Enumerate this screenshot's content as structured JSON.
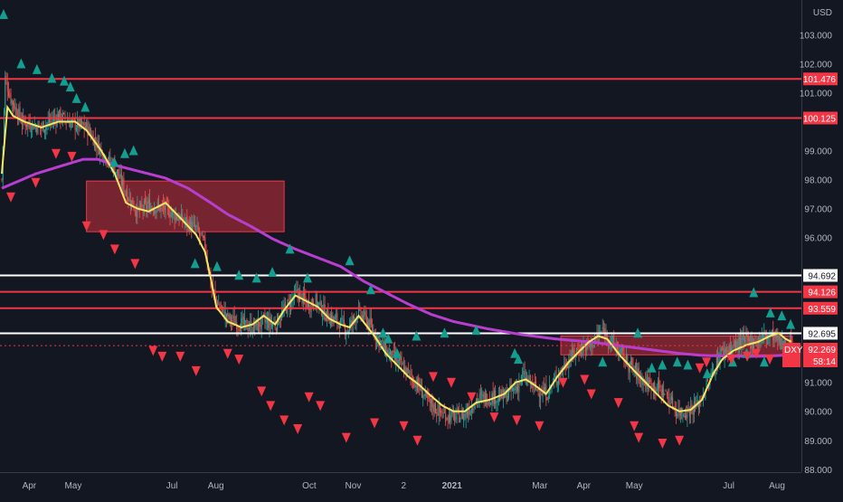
{
  "chart_data": {
    "type": "candlestick",
    "symbol": "DXY",
    "currency_label": "USD",
    "countdown": "58:14",
    "last_price": 92.269,
    "ylim": [
      87.9,
      104.2
    ],
    "x_tick_labels": [
      {
        "label": "Apr",
        "bar": 25
      },
      {
        "label": "May",
        "bar": 65
      },
      {
        "label": "Jul",
        "bar": 155
      },
      {
        "label": "Aug",
        "bar": 195
      },
      {
        "label": "Oct",
        "bar": 280
      },
      {
        "label": "Nov",
        "bar": 320
      },
      {
        "label": "2",
        "bar": 366
      },
      {
        "label": "2021",
        "bar": 410
      },
      {
        "label": "Mar",
        "bar": 490
      },
      {
        "label": "Apr",
        "bar": 530
      },
      {
        "label": "May",
        "bar": 576
      },
      {
        "label": "Jul",
        "bar": 662
      },
      {
        "label": "Aug",
        "bar": 706
      }
    ],
    "y_tick_labels": [
      "103.000",
      "102.000",
      "101.000",
      "99.000",
      "98.000",
      "97.000",
      "96.000",
      "91.000",
      "90.000",
      "89.000",
      "88.000"
    ],
    "y_tick_values": [
      103,
      102,
      101,
      99,
      98,
      97,
      96,
      91,
      90,
      89,
      88
    ],
    "horizontal_lines": [
      {
        "price": 101.476,
        "label": "101.476",
        "color": "#f23645"
      },
      {
        "price": 100.125,
        "label": "100.125",
        "color": "#f23645"
      },
      {
        "price": 94.692,
        "label": "94.692",
        "color": "#ffffff"
      },
      {
        "price": 94.126,
        "label": "94.126",
        "color": "#f23645"
      },
      {
        "price": 93.559,
        "label": "93.559",
        "color": "#f23645"
      },
      {
        "price": 92.695,
        "label": "92.695",
        "color": "#ffffff"
      }
    ],
    "zones": [
      {
        "bar_start": 75,
        "bar_end": 250,
        "price_top": 97.95,
        "price_bottom": 96.2
      },
      {
        "bar_start": 495,
        "bar_end": 700,
        "price_top": 92.6,
        "price_bottom": 91.95
      }
    ],
    "price_anchors": [
      [
        0,
        98.0
      ],
      [
        3,
        101.5
      ],
      [
        8,
        100.8
      ],
      [
        18,
        100.0
      ],
      [
        35,
        99.8
      ],
      [
        50,
        100.2
      ],
      [
        65,
        99.9
      ],
      [
        75,
        99.8
      ],
      [
        88,
        99.0
      ],
      [
        100,
        98.4
      ],
      [
        112,
        97.4
      ],
      [
        120,
        96.9
      ],
      [
        130,
        97.1
      ],
      [
        145,
        97.0
      ],
      [
        160,
        96.6
      ],
      [
        172,
        96.3
      ],
      [
        180,
        95.7
      ],
      [
        185,
        94.4
      ],
      [
        190,
        93.8
      ],
      [
        200,
        93.2
      ],
      [
        212,
        93.0
      ],
      [
        222,
        92.9
      ],
      [
        232,
        93.1
      ],
      [
        242,
        93.0
      ],
      [
        252,
        93.6
      ],
      [
        262,
        94.1
      ],
      [
        270,
        93.7
      ],
      [
        278,
        93.8
      ],
      [
        288,
        93.3
      ],
      [
        298,
        93.1
      ],
      [
        306,
        92.8
      ],
      [
        315,
        93.4
      ],
      [
        322,
        93.2
      ],
      [
        330,
        92.7
      ],
      [
        340,
        92.1
      ],
      [
        350,
        91.7
      ],
      [
        360,
        91.3
      ],
      [
        370,
        90.8
      ],
      [
        378,
        90.3
      ],
      [
        390,
        89.9
      ],
      [
        400,
        89.8
      ],
      [
        410,
        89.9
      ],
      [
        420,
        90.4
      ],
      [
        432,
        90.5
      ],
      [
        445,
        90.5
      ],
      [
        455,
        90.8
      ],
      [
        462,
        91.2
      ],
      [
        472,
        90.8
      ],
      [
        482,
        90.6
      ],
      [
        492,
        91.2
      ],
      [
        502,
        91.8
      ],
      [
        512,
        92.2
      ],
      [
        522,
        92.3
      ],
      [
        532,
        92.8
      ],
      [
        540,
        92.4
      ],
      [
        550,
        91.9
      ],
      [
        560,
        91.4
      ],
      [
        570,
        91.0
      ],
      [
        578,
        90.9
      ],
      [
        588,
        90.6
      ],
      [
        598,
        90.0
      ],
      [
        606,
        90.0
      ],
      [
        616,
        90.2
      ],
      [
        628,
        91.2
      ],
      [
        636,
        92.0
      ],
      [
        646,
        92.2
      ],
      [
        656,
        92.4
      ],
      [
        666,
        92.4
      ],
      [
        676,
        92.6
      ],
      [
        684,
        92.6
      ],
      [
        690,
        92.3
      ],
      [
        699,
        92.27
      ]
    ],
    "ma_fast_anchors": [
      [
        0,
        98.2
      ],
      [
        5,
        100.5
      ],
      [
        10,
        100.2
      ],
      [
        20,
        100.0
      ],
      [
        35,
        99.8
      ],
      [
        50,
        100.0
      ],
      [
        65,
        100.0
      ],
      [
        75,
        99.7
      ],
      [
        88,
        99.0
      ],
      [
        100,
        98.2
      ],
      [
        110,
        97.2
      ],
      [
        120,
        97.0
      ],
      [
        130,
        96.9
      ],
      [
        145,
        97.2
      ],
      [
        160,
        96.6
      ],
      [
        172,
        96.1
      ],
      [
        180,
        95.5
      ],
      [
        185,
        94.6
      ],
      [
        190,
        93.6
      ],
      [
        200,
        93.1
      ],
      [
        212,
        92.9
      ],
      [
        222,
        93.0
      ],
      [
        232,
        93.3
      ],
      [
        242,
        93.0
      ],
      [
        250,
        93.5
      ],
      [
        260,
        94.0
      ],
      [
        270,
        93.8
      ],
      [
        280,
        93.6
      ],
      [
        290,
        93.2
      ],
      [
        300,
        93.0
      ],
      [
        308,
        92.9
      ],
      [
        316,
        93.3
      ],
      [
        322,
        93.0
      ],
      [
        330,
        92.6
      ],
      [
        340,
        92.0
      ],
      [
        350,
        91.6
      ],
      [
        360,
        91.2
      ],
      [
        370,
        90.9
      ],
      [
        378,
        90.6
      ],
      [
        390,
        90.2
      ],
      [
        400,
        90.0
      ],
      [
        410,
        90.0
      ],
      [
        420,
        90.3
      ],
      [
        432,
        90.4
      ],
      [
        445,
        90.6
      ],
      [
        455,
        91.0
      ],
      [
        464,
        91.1
      ],
      [
        472,
        90.9
      ],
      [
        482,
        90.6
      ],
      [
        492,
        91.2
      ],
      [
        502,
        91.7
      ],
      [
        512,
        92.1
      ],
      [
        520,
        92.4
      ],
      [
        528,
        92.6
      ],
      [
        536,
        92.5
      ],
      [
        548,
        91.9
      ],
      [
        560,
        91.4
      ],
      [
        570,
        91.0
      ],
      [
        580,
        90.6
      ],
      [
        590,
        90.2
      ],
      [
        600,
        90.0
      ],
      [
        610,
        90.05
      ],
      [
        620,
        90.4
      ],
      [
        630,
        91.3
      ],
      [
        638,
        91.8
      ],
      [
        648,
        92.1
      ],
      [
        660,
        92.3
      ],
      [
        670,
        92.4
      ],
      [
        680,
        92.6
      ],
      [
        688,
        92.7
      ],
      [
        694,
        92.5
      ],
      [
        699,
        92.4
      ]
    ],
    "ma_slow_anchors": [
      [
        0,
        97.7
      ],
      [
        30,
        98.2
      ],
      [
        55,
        98.5
      ],
      [
        72,
        98.7
      ],
      [
        85,
        98.7
      ],
      [
        100,
        98.5
      ],
      [
        120,
        98.3
      ],
      [
        145,
        98.05
      ],
      [
        165,
        97.7
      ],
      [
        185,
        97.2
      ],
      [
        200,
        96.8
      ],
      [
        220,
        96.4
      ],
      [
        240,
        95.95
      ],
      [
        260,
        95.6
      ],
      [
        280,
        95.3
      ],
      [
        300,
        95.0
      ],
      [
        320,
        94.5
      ],
      [
        340,
        94.1
      ],
      [
        360,
        93.7
      ],
      [
        380,
        93.35
      ],
      [
        400,
        93.1
      ],
      [
        430,
        92.85
      ],
      [
        460,
        92.65
      ],
      [
        490,
        92.5
      ],
      [
        520,
        92.4
      ],
      [
        550,
        92.25
      ],
      [
        580,
        92.1
      ],
      [
        600,
        92.0
      ],
      [
        620,
        91.93
      ],
      [
        650,
        91.9
      ],
      [
        675,
        91.9
      ],
      [
        699,
        91.95
      ]
    ],
    "buy_signal_bars": [
      2,
      22,
      40,
      57,
      71,
      78,
      85,
      95,
      128,
      140,
      150,
      220,
      245,
      270,
      290,
      308,
      328,
      348,
      396,
      420,
      434,
      440,
      450,
      472,
      504,
      540,
      584,
      588,
      684,
      724,
      740,
      752,
      769,
      781,
      803,
      832,
      848,
      856,
      868,
      875,
      888,
      891,
      898
    ],
    "buy_signal_prices": [
      103.7,
      102.0,
      101.8,
      101.5,
      101.4,
      101.2,
      100.8,
      100.5,
      98.6,
      98.9,
      99.0,
      95.1,
      95.0,
      94.7,
      94.6,
      94.8,
      95.6,
      94.6,
      95.2,
      94.2,
      92.7,
      92.5,
      92.0,
      92.6,
      92.7,
      92.8,
      92.0,
      91.8,
      91.7,
      92.7,
      91.5,
      91.6,
      91.7,
      91.6,
      91.3,
      91.7,
      92.0,
      94.1,
      91.7,
      93.4,
      93.3,
      92.3,
      93.0
    ],
    "sell_signal_bars": [],
    "sell_signal_prices": []
  }
}
